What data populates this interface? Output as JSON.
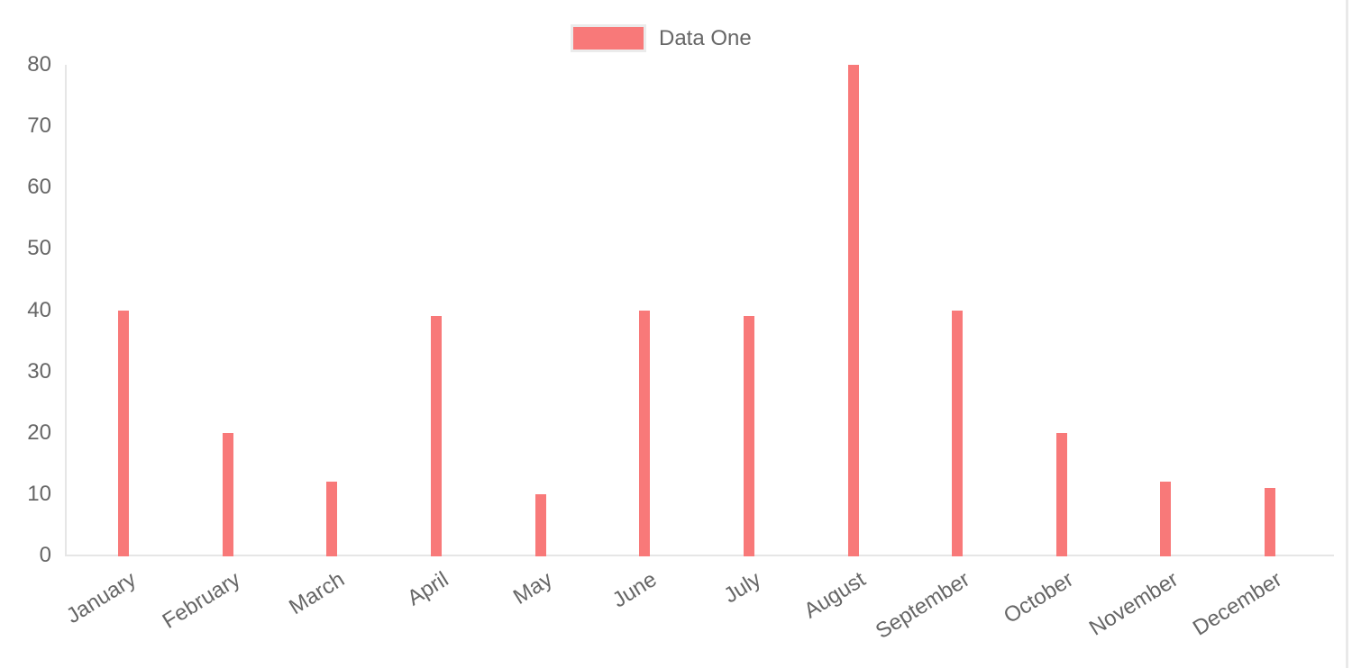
{
  "chart_data": {
    "type": "bar",
    "categories": [
      "January",
      "February",
      "March",
      "April",
      "May",
      "June",
      "July",
      "August",
      "September",
      "October",
      "November",
      "December"
    ],
    "series": [
      {
        "name": "Data One",
        "color": "#f87979",
        "values": [
          40,
          20,
          12,
          39,
          10,
          40,
          39,
          80,
          40,
          20,
          12,
          11
        ]
      }
    ],
    "ylim": [
      0,
      80
    ],
    "yticks": [
      0,
      10,
      20,
      30,
      40,
      50,
      60,
      70,
      80
    ],
    "legend_position": "top-center",
    "grid": "off",
    "x_tick_rotation_deg": -32,
    "label_color": "#666666",
    "axis_line_color": "#e6e6e6"
  }
}
